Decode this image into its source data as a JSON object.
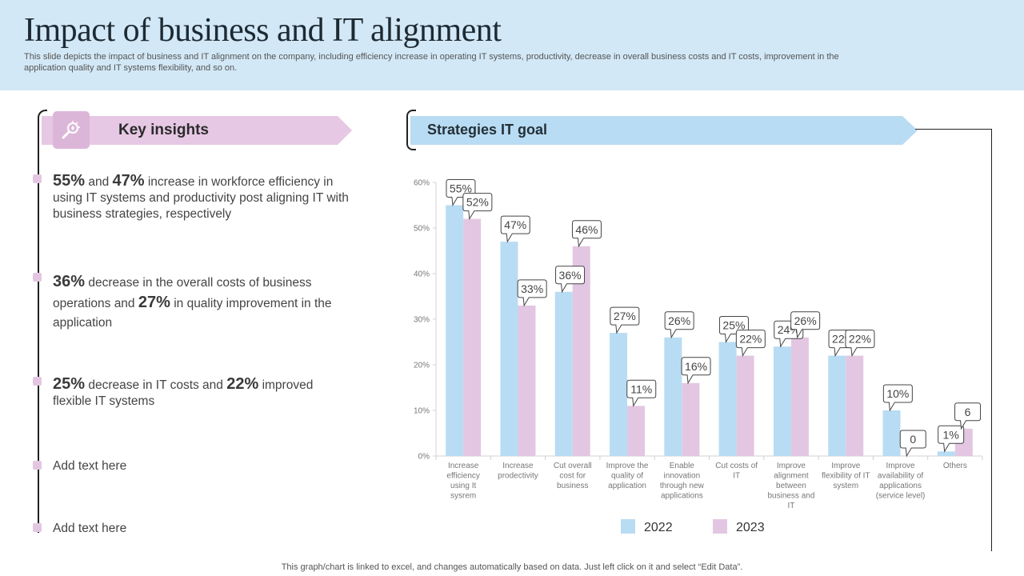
{
  "header": {
    "title": "Impact of business and IT alignment",
    "subtitle": "This slide depicts the impact of business and IT alignment on the company, including efficiency increase in operating IT systems, productivity, decrease in overall business costs and IT costs, improvement in the application quality and IT systems flexibility, and so on."
  },
  "key_insights": {
    "title": "Key insights",
    "icon": "magnifier-insight-icon",
    "items": [
      {
        "p1": "55%",
        "t1": " and ",
        "p2": "47%",
        "t2": "  increase in workforce efficiency in using IT systems and productivity post aligning IT with business strategies, respectively"
      },
      {
        "p1": "36%",
        "t1": " decrease in the overall costs of business operations and ",
        "p2": "27%",
        "t2": " in quality improvement in the application"
      },
      {
        "p1": "25%",
        "t1": " decrease in IT costs and ",
        "p2": "22%",
        "t2": " improved flexible IT systems"
      },
      {
        "text": "Add text here"
      },
      {
        "text": "Add text here"
      }
    ]
  },
  "strategies": {
    "title": "Strategies IT goal"
  },
  "colors": {
    "series_2022": "#b8dcf3",
    "series_2023": "#e3c7e2",
    "header_bg": "#d2e8f6"
  },
  "chart_data": {
    "type": "bar",
    "title": "Strategies IT goal",
    "xlabel": "",
    "ylabel": "",
    "ylim": [
      0,
      60
    ],
    "yticks": [
      "0%",
      "10%",
      "20%",
      "30%",
      "40%",
      "50%",
      "60%"
    ],
    "grid": false,
    "legend": "bottom",
    "categories": [
      "Increase efficiency using It sysrem",
      "Increase prodectivity",
      "Cut overall cost for business",
      "Improve the quality of application",
      "Enable innovation through new applications",
      "Cut costs of IT",
      "Improve alignment between business and IT",
      "Improve flexibility of IT system",
      "Improve availability of applications (service level)",
      "Others"
    ],
    "category_lines": [
      [
        "Increase",
        "efficiency",
        "using It",
        "sysrem"
      ],
      [
        "Increase",
        "prodectivity"
      ],
      [
        "Cut overall",
        "cost for",
        "business"
      ],
      [
        "Improve the",
        "quality of",
        "application"
      ],
      [
        "Enable",
        "innovation",
        "through new",
        "applications"
      ],
      [
        "Cut costs of",
        "IT"
      ],
      [
        "Improve",
        "alignment",
        "between",
        "business and",
        "IT"
      ],
      [
        "Improve",
        "flexibility of IT",
        "system"
      ],
      [
        "Improve",
        "availability of",
        "applications",
        "(service level)"
      ],
      [
        "Others"
      ]
    ],
    "series": [
      {
        "name": "2022",
        "values": [
          55,
          47,
          36,
          27,
          26,
          25,
          24,
          22,
          10,
          1
        ],
        "labels": [
          "55%",
          "47%",
          "36%",
          "27%",
          "26%",
          "25%",
          "24%",
          "22%",
          "10%",
          "1%"
        ]
      },
      {
        "name": "2023",
        "values": [
          52,
          33,
          46,
          11,
          16,
          22,
          26,
          22,
          0,
          6
        ],
        "labels": [
          "52%",
          "33%",
          "46%",
          "11%",
          "16%",
          "22%",
          "26%",
          "22%",
          "0",
          "6"
        ]
      }
    ]
  },
  "footer": "This graph/chart is linked to excel,  and changes automatically based on data. Just left click on it and select “Edit Data”."
}
